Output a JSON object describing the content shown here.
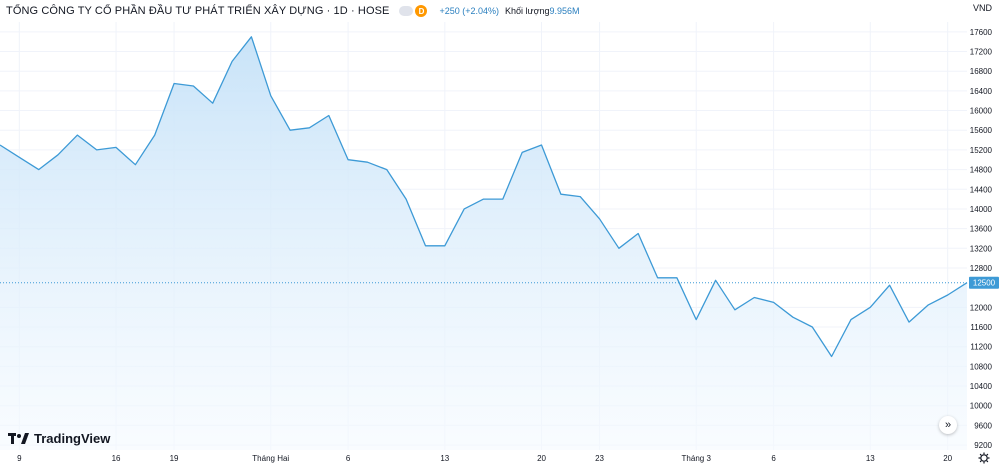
{
  "header": {
    "title": "TỔNG CÔNG TY CỔ PHẦN ĐẦU TƯ PHÁT TRIỂN XÂY DỰNG · 1D · HOSE",
    "badge": "D",
    "change": "+250 (+2.04%)",
    "volume_label": "Khối lượng",
    "volume_value": "9.956M"
  },
  "currency": "VND",
  "brand": "TradingView",
  "scroll_button": "»",
  "colors": {
    "line": "#3d9ad6",
    "fill_top": "#c6e2f8",
    "fill_bottom": "#f5faff",
    "last_label_bg": "#3d9ad6",
    "text": "#131722"
  },
  "chart_data": {
    "type": "area",
    "x_ticks": [
      "9",
      "16",
      "19",
      "Tháng Hai",
      "6",
      "13",
      "20",
      "23",
      "Tháng 3",
      "6",
      "13",
      "20"
    ],
    "y_ticks": [
      9200,
      9600,
      10000,
      10400,
      10800,
      11200,
      11600,
      12000,
      12500,
      12800,
      13200,
      13600,
      14000,
      14400,
      14800,
      15200,
      15600,
      16000,
      16400,
      16800,
      17200,
      17600
    ],
    "ylim": [
      9100,
      17800
    ],
    "last_value": 12500,
    "series": [
      {
        "values": [
          15300,
          15050,
          14800,
          15100,
          15500,
          15200,
          15250,
          14900,
          15500,
          16550,
          16500,
          16150,
          17000,
          17500,
          16300,
          15600,
          15650,
          15900,
          15000,
          14950,
          14800,
          14200,
          13250,
          13250,
          14000,
          14200,
          14200,
          15150,
          15300,
          14300,
          14250,
          13800,
          13200,
          13500,
          12600,
          12600,
          11750,
          12550,
          11950,
          12200,
          12100,
          11800,
          11600,
          11000,
          11750,
          12000,
          12450,
          11700,
          12050,
          12250,
          12500
        ]
      }
    ]
  }
}
